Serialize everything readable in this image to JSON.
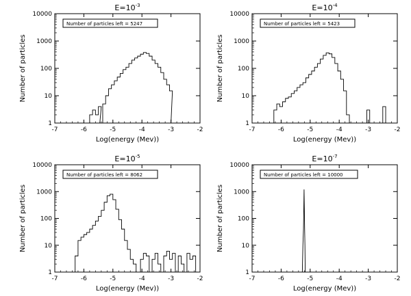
{
  "chart_data": [
    {
      "type": "line",
      "step": true,
      "title_base": "E=10",
      "title_exp": "-3",
      "xlabel": "Log(energy (Mev))",
      "ylabel": "Number of particles",
      "xlim": [
        -7,
        -2
      ],
      "ylim": [
        1,
        10000
      ],
      "yscale": "log",
      "x_ticks": [
        "-7",
        "-6",
        "-5",
        "-4",
        "-3",
        "-2"
      ],
      "y_ticks": [
        "1",
        "10",
        "100",
        "1000",
        "10000"
      ],
      "annotation": "Number of particles left = 5247",
      "series": [
        {
          "x": [
            -5.85,
            -5.75,
            -5.65,
            -5.55,
            -5.45,
            -5.4,
            -5.3,
            -5.2,
            -5.1,
            -5.0,
            -4.9,
            -4.8,
            -4.7,
            -4.6,
            -4.5,
            -4.4,
            -4.3,
            -4.2,
            -4.1,
            -4.0,
            -3.9,
            -3.8,
            -3.7,
            -3.6,
            -3.5,
            -3.4,
            -3.3,
            -3.2,
            -3.1,
            -3.0,
            -2.95
          ],
          "values": [
            1,
            2,
            3,
            2,
            4,
            1,
            5,
            10,
            18,
            25,
            35,
            48,
            65,
            90,
            110,
            150,
            200,
            240,
            280,
            330,
            380,
            350,
            280,
            200,
            150,
            110,
            70,
            40,
            25,
            15,
            1
          ]
        }
      ]
    },
    {
      "type": "line",
      "step": true,
      "title_base": "E=10",
      "title_exp": "-4",
      "xlabel": "Log(energy (Mev))",
      "ylabel": "Number of particles",
      "xlim": [
        -7,
        -2
      ],
      "ylim": [
        1,
        10000
      ],
      "yscale": "log",
      "x_ticks": [
        "-7",
        "-6",
        "-5",
        "-4",
        "-3",
        "-2"
      ],
      "y_ticks": [
        "1",
        "10",
        "100",
        "1000",
        "10000"
      ],
      "annotation": "Number of particles left = 5423",
      "series": [
        {
          "x": [
            -6.2,
            -6.1,
            -6.0,
            -5.9,
            -5.8,
            -5.7,
            -5.6,
            -5.5,
            -5.4,
            -5.3,
            -5.2,
            -5.1,
            -5.0,
            -4.9,
            -4.8,
            -4.7,
            -4.6,
            -4.5,
            -4.4,
            -4.3,
            -4.2,
            -4.1,
            -4.0,
            -3.9,
            -3.8,
            -3.7
          ],
          "values": [
            3,
            5,
            4,
            6,
            8,
            9,
            12,
            15,
            20,
            25,
            30,
            45,
            60,
            80,
            110,
            150,
            220,
            300,
            370,
            340,
            250,
            150,
            80,
            40,
            15,
            2
          ]
        },
        {
          "x": [
            -3.0,
            -2.45
          ],
          "values": [
            3,
            4
          ]
        }
      ]
    },
    {
      "type": "line",
      "step": true,
      "title_base": "E=10",
      "title_exp": "-5",
      "xlabel": "Log(energy (Mev))",
      "ylabel": "Number of particles",
      "xlim": [
        -7,
        -2
      ],
      "ylim": [
        1,
        10000
      ],
      "yscale": "log",
      "x_ticks": [
        "-7",
        "-6",
        "-5",
        "-4",
        "-3",
        "-2"
      ],
      "y_ticks": [
        "1",
        "10",
        "100",
        "1000",
        "10000"
      ],
      "annotation": "Number of particles left = 8062",
      "series": [
        {
          "x": [
            -6.25,
            -6.15,
            -6.05,
            -5.95,
            -5.85,
            -5.75,
            -5.65,
            -5.55,
            -5.45,
            -5.35,
            -5.25,
            -5.15,
            -5.05,
            -4.95,
            -4.85,
            -4.75,
            -4.65,
            -4.55,
            -4.45,
            -4.35,
            -4.25,
            -4.15
          ],
          "values": [
            4,
            15,
            20,
            25,
            30,
            40,
            55,
            80,
            120,
            200,
            400,
            700,
            800,
            500,
            220,
            90,
            40,
            15,
            7,
            3,
            2,
            1
          ]
        },
        {
          "x": [
            -4.0,
            -3.9,
            -3.8,
            -3.6,
            -3.5,
            -3.4,
            -3.2,
            -3.1,
            -3.0,
            -2.9,
            -2.7,
            -2.6,
            -2.4,
            -2.3,
            -2.2
          ],
          "values": [
            3,
            5,
            4,
            3,
            5,
            2,
            4,
            6,
            3,
            5,
            4,
            2,
            5,
            3,
            4
          ]
        }
      ]
    },
    {
      "type": "line",
      "step": false,
      "title_base": "E=10",
      "title_exp": "-7",
      "xlabel": "Log(energy (Mev))",
      "ylabel": "Number of particles",
      "xlim": [
        -7,
        -2
      ],
      "ylim": [
        1,
        10000
      ],
      "yscale": "log",
      "x_ticks": [
        "-7",
        "-6",
        "-5",
        "-4",
        "-3",
        "-2"
      ],
      "y_ticks": [
        "1",
        "10",
        "100",
        "1000",
        "10000"
      ],
      "annotation": "Number of particles left = 10000",
      "series": [
        {
          "x": [
            -5.27,
            -5.25,
            -5.23,
            -5.22,
            -5.21,
            -5.2,
            -5.19,
            -5.18,
            -5.17
          ],
          "values": [
            1,
            10,
            40,
            200,
            1200,
            200,
            40,
            10,
            1
          ]
        }
      ]
    }
  ]
}
